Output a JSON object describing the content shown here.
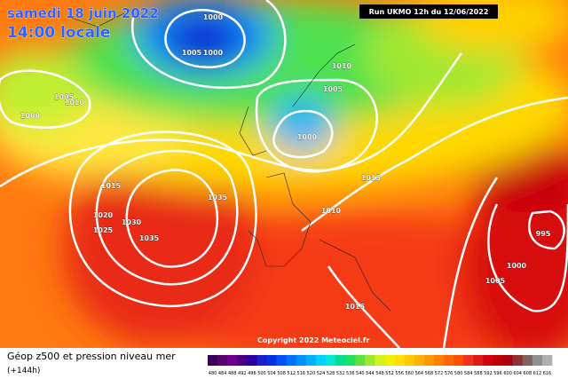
{
  "header": {
    "date": "samedi 18 juin 2022",
    "time": "14:00 locale",
    "run": "Run UKMO 12h du 12/06/2022"
  },
  "map": {
    "copyright": "Copyright 2022 Meteociel.fr",
    "isobars": [
      1000,
      1005,
      1000,
      1010,
      1005,
      1005,
      1010,
      1000,
      1000,
      1015,
      1035,
      1015,
      1010,
      1020,
      1030,
      1025,
      1035,
      995,
      1000,
      1005,
      1015
    ]
  },
  "legend": {
    "title": "Géop z500 et pression niveau mer",
    "lead": "(+144h)",
    "colors": [
      "#3a0058",
      "#5a0070",
      "#6e0090",
      "#4b0082",
      "#2a00a0",
      "#1c1cc8",
      "#0033e0",
      "#0050ff",
      "#0070ff",
      "#0090ff",
      "#00b0ff",
      "#00d0ff",
      "#00e8d0",
      "#00e090",
      "#20e060",
      "#60e040",
      "#a0e830",
      "#d0f020",
      "#f0f000",
      "#ffe000",
      "#ffc800",
      "#ffb000",
      "#ff9800",
      "#ff8000",
      "#ff6800",
      "#ff5000",
      "#f03020",
      "#e01818",
      "#d00010",
      "#c00000",
      "#a80010",
      "#903030",
      "#806060",
      "#909090",
      "#b0b0b0"
    ],
    "labels": [
      480,
      484,
      488,
      492,
      496,
      500,
      504,
      508,
      512,
      516,
      520,
      524,
      528,
      532,
      536,
      540,
      544,
      548,
      552,
      556,
      560,
      564,
      568,
      572,
      576,
      580,
      584,
      588,
      592,
      596,
      600,
      604,
      608,
      612,
      616
    ]
  }
}
